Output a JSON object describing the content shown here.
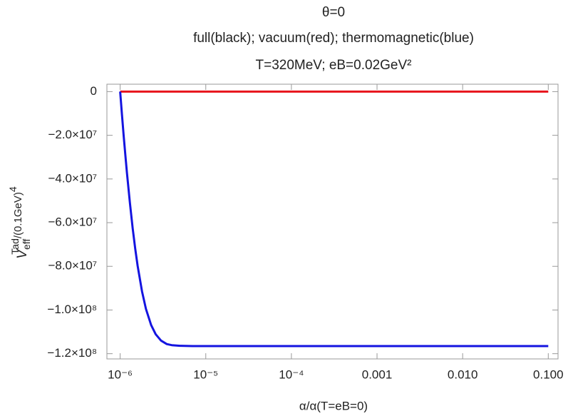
{
  "chart_data": {
    "type": "line",
    "title": [
      "θ=0",
      "full(black); vacuum(red); thermomagnetic(blue)",
      "T=320MeV; eB=0.02GeV²"
    ],
    "xlabel": "α/α(T=eB=0)",
    "ylabel": {
      "main": "V",
      "sub": "eff",
      "sup": "Tad",
      "rest": "/(0.1GeV)",
      "exp": "4"
    },
    "x": [
      1e-06,
      1.05e-06,
      1.1e-06,
      1.15e-06,
      1.2e-06,
      1.3e-06,
      1.4e-06,
      1.5e-06,
      1.6e-06,
      1.8e-06,
      2e-06,
      2.3e-06,
      2.6e-06,
      3e-06,
      3.5e-06,
      4e-06,
      5e-06,
      7e-06,
      1e-05,
      0.0001,
      0.001,
      0.01,
      0.1
    ],
    "series": [
      {
        "color": "#e8141c",
        "values": [
          0,
          0,
          0,
          0,
          0,
          0,
          0,
          0,
          0,
          0,
          0,
          0,
          0,
          0,
          0,
          0,
          0,
          0,
          0,
          0,
          0,
          0,
          0
        ]
      },
      {
        "color": "#1414e0",
        "values": [
          0,
          -10700000,
          -20400000,
          -29100000,
          -37200000,
          -51000000,
          -62600000,
          -72000000,
          -79800000,
          -91500000,
          -99500000,
          -106900000,
          -111100000,
          -114000000,
          -115600000,
          -116100000,
          -116400000,
          -116500000,
          -116500000,
          -116500000,
          -116500000,
          -116500000,
          -116500000
        ]
      }
    ],
    "xscale": "log",
    "xlim": [
      7e-07,
      0.13
    ],
    "xticks": [
      {
        "value": 1e-06,
        "label": "10⁻⁶"
      },
      {
        "value": 1e-05,
        "label": "10⁻⁵"
      },
      {
        "value": 0.0001,
        "label": "10⁻⁴"
      },
      0.001,
      {
        "value": 0.01,
        "label": "0.010"
      },
      {
        "value": 0.1,
        "label": "0.100"
      }
    ],
    "ylim": [
      -122400000,
      3400000
    ],
    "yticks": [
      0,
      {
        "value": -20000000,
        "label": "−2.0×10⁷"
      },
      {
        "value": -40000000,
        "label": "−4.0×10⁷"
      },
      {
        "value": -60000000,
        "label": "−6.0×10⁷"
      },
      {
        "value": -80000000,
        "label": "−8.0×10⁷"
      },
      {
        "value": -100000000,
        "label": "−1.0×10⁸"
      },
      {
        "value": -120000000,
        "label": "−1.2×10⁸"
      }
    ]
  }
}
